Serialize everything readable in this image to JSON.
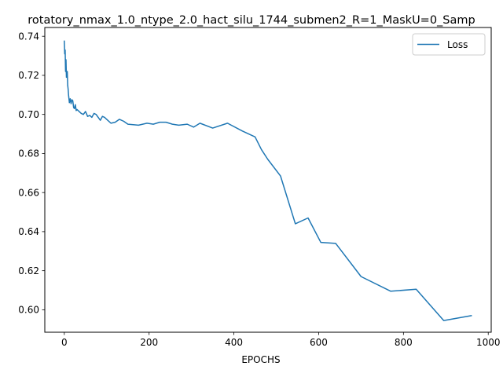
{
  "chart_data": {
    "type": "line",
    "title": "rotatory_nmax_1.0_ntype_2.0_hact_silu_1744_submen2_R=1_MaskU=0_Samp",
    "xlabel": "EPOCHS",
    "ylabel": "",
    "xlim": [
      -46,
      1007
    ],
    "ylim": [
      0.5885,
      0.7445
    ],
    "xticks": [
      0,
      200,
      400,
      600,
      800,
      1000
    ],
    "yticks": [
      0.6,
      0.62,
      0.64,
      0.66,
      0.68,
      0.7,
      0.72,
      0.74
    ],
    "grid": false,
    "legend_position": "top-right",
    "series": [
      {
        "name": "Loss",
        "color": "#1f77b4",
        "x": [
          0,
          1,
          2,
          3,
          4,
          5,
          6,
          7,
          8,
          9,
          10,
          12,
          14,
          16,
          18,
          20,
          22,
          24,
          26,
          28,
          30,
          35,
          40,
          45,
          50,
          55,
          60,
          65,
          70,
          75,
          80,
          85,
          90,
          95,
          100,
          110,
          120,
          130,
          140,
          150,
          175,
          195,
          210,
          225,
          240,
          255,
          270,
          290,
          305,
          320,
          350,
          385,
          420,
          450,
          465,
          480,
          510,
          545,
          575,
          605,
          640,
          700,
          770,
          830,
          895,
          960
        ],
        "y": [
          0.7375,
          0.731,
          0.733,
          0.722,
          0.728,
          0.719,
          0.721,
          0.722,
          0.715,
          0.713,
          0.71,
          0.706,
          0.708,
          0.7055,
          0.7075,
          0.707,
          0.7035,
          0.703,
          0.705,
          0.702,
          0.7025,
          0.7015,
          0.7005,
          0.7,
          0.7015,
          0.699,
          0.6995,
          0.6985,
          0.7005,
          0.7,
          0.6985,
          0.697,
          0.699,
          0.6985,
          0.6975,
          0.6955,
          0.696,
          0.6975,
          0.6965,
          0.695,
          0.6945,
          0.6955,
          0.695,
          0.696,
          0.696,
          0.695,
          0.6945,
          0.695,
          0.6935,
          0.6955,
          0.693,
          0.6955,
          0.6915,
          0.6885,
          0.682,
          0.677,
          0.6685,
          0.644,
          0.647,
          0.6345,
          0.634,
          0.617,
          0.6095,
          0.6105,
          0.5945,
          0.597
        ]
      }
    ]
  }
}
